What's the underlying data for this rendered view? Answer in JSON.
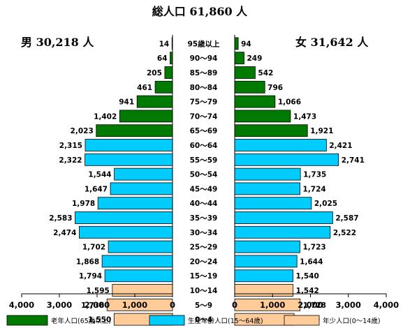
{
  "chart_data": {
    "type": "bar",
    "title": "総人口 61,860 人",
    "male_label": "男 30,218 人",
    "female_label": "女 31,642 人",
    "categories": [
      "95歳以上",
      "90～94",
      "85～89",
      "80～84",
      "75～79",
      "70～74",
      "65～69",
      "60～64",
      "55～59",
      "50～54",
      "45～49",
      "40～44",
      "35～39",
      "30～34",
      "25～29",
      "20～24",
      "15～19",
      "10～14",
      "5～9",
      "0～4"
    ],
    "series": [
      {
        "name": "男",
        "values": [
          14,
          64,
          205,
          461,
          941,
          1402,
          2023,
          2315,
          2322,
          1544,
          1647,
          1978,
          2583,
          2474,
          1702,
          1868,
          1794,
          1595,
          1736,
          1550
        ]
      },
      {
        "name": "女",
        "values": [
          94,
          249,
          542,
          796,
          1066,
          1473,
          1921,
          2421,
          2741,
          1735,
          1724,
          2025,
          2587,
          2522,
          1723,
          1644,
          1540,
          1542,
          1728,
          1569
        ]
      }
    ],
    "value_labels": {
      "male": [
        "14",
        "64",
        "205",
        "461",
        "941",
        "1,402",
        "2,023",
        "2,315",
        "2,322",
        "1,544",
        "1,647",
        "1,978",
        "2,583",
        "2,474",
        "1,702",
        "1,868",
        "1,794",
        "1,595",
        "1,736",
        "1,550"
      ],
      "female": [
        "94",
        "249",
        "542",
        "796",
        "1,066",
        "1,473",
        "1,921",
        "2,421",
        "2,741",
        "1,735",
        "1,724",
        "2,025",
        "2,587",
        "2,522",
        "1,723",
        "1,644",
        "1,540",
        "1,542",
        "1,728",
        "1,569"
      ]
    },
    "groups": [
      "old",
      "old",
      "old",
      "old",
      "old",
      "old",
      "old",
      "work",
      "work",
      "work",
      "work",
      "work",
      "work",
      "work",
      "work",
      "work",
      "work",
      "young",
      "young",
      "young"
    ],
    "xlim": [
      0,
      4000
    ],
    "left_ticks": [
      "4,000",
      "3,000",
      "2,000",
      "1,000",
      "0"
    ],
    "right_ticks": [
      "0",
      "1,000",
      "2,000",
      "3,000",
      "4,000"
    ],
    "legend": [
      {
        "key": "old",
        "label": "老年人口(65歳以上)",
        "color": "#007a00"
      },
      {
        "key": "work",
        "label": "生産年齢人口(15～64歳)",
        "color": "#00ccff"
      },
      {
        "key": "young",
        "label": "年少人口(0～14歳)",
        "color": "#ffcc99"
      }
    ],
    "legend_position": "bottom",
    "grid": false
  }
}
